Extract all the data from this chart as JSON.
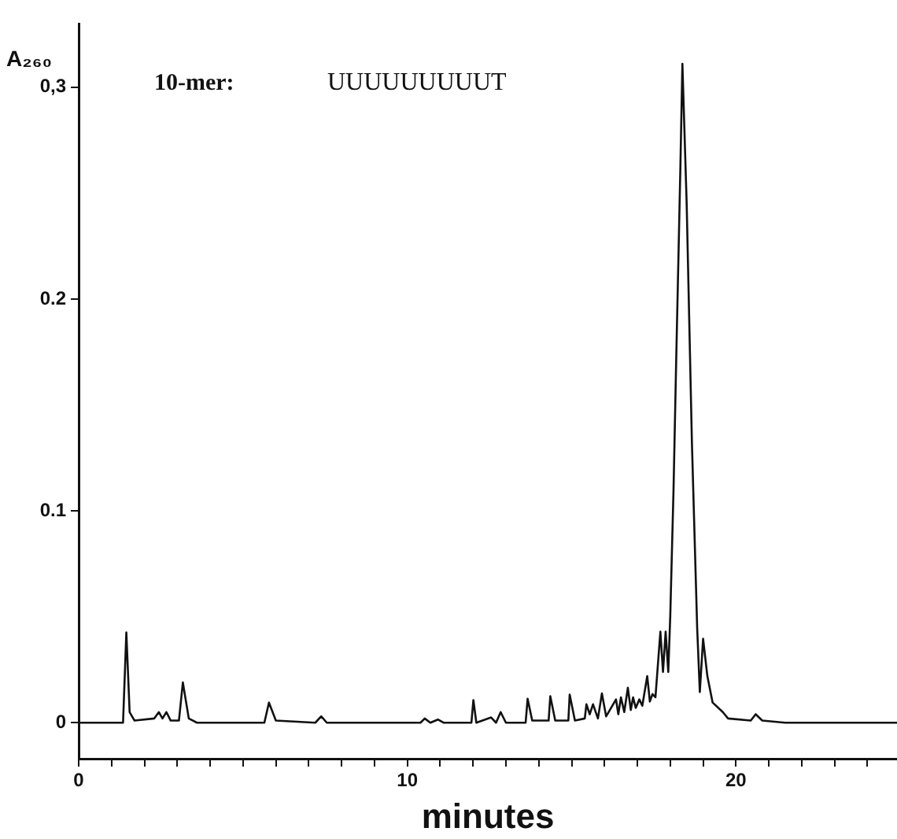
{
  "chart_data": {
    "type": "line",
    "xlabel": "minutes",
    "ylabel": "A₂₆₀",
    "annotations": [
      "10-mer:",
      "UUUUUUUUUT"
    ],
    "xlim": [
      0,
      24.9
    ],
    "ylim": [
      -0.017,
      0.33
    ],
    "xticks": [
      0,
      {
        "value": 1,
        "label": null
      },
      {
        "value": 2,
        "label": null
      },
      {
        "value": 3,
        "label": null
      },
      {
        "value": 4,
        "label": null
      },
      {
        "value": 5,
        "label": null
      },
      {
        "value": 6,
        "label": null
      },
      {
        "value": 7,
        "label": null
      },
      {
        "value": 8,
        "label": null
      },
      {
        "value": 9,
        "label": null
      },
      10,
      {
        "value": 11,
        "label": null
      },
      {
        "value": 12,
        "label": null
      },
      {
        "value": 13,
        "label": null
      },
      {
        "value": 14,
        "label": null
      },
      {
        "value": 15,
        "label": null
      },
      {
        "value": 16,
        "label": null
      },
      {
        "value": 17,
        "label": null
      },
      {
        "value": 18,
        "label": null
      },
      {
        "value": 19,
        "label": null
      },
      20,
      {
        "value": 21,
        "label": null
      },
      {
        "value": 22,
        "label": null
      },
      {
        "value": 23,
        "label": null
      },
      {
        "value": 24,
        "label": null
      }
    ],
    "yticks": [
      0,
      0.1,
      0.2,
      {
        "value": 0.3,
        "label": "0,3"
      }
    ],
    "grid": false,
    "legend": false,
    "marker": "none",
    "line_style": "solid",
    "series": [
      {
        "color": "#111111",
        "x": [
          0,
          1.35,
          1.45,
          1.55,
          1.7,
          2.3,
          2.44,
          2.55,
          2.67,
          2.8,
          3.05,
          3.17,
          3.35,
          3.6,
          5.65,
          5.79,
          6.0,
          7.2,
          7.38,
          7.55,
          10.4,
          10.53,
          10.7,
          10.93,
          11.1,
          11.95,
          12.01,
          12.1,
          12.55,
          12.7,
          12.84,
          13.0,
          13.6,
          13.66,
          13.8,
          14.3,
          14.35,
          14.5,
          14.9,
          14.94,
          15.1,
          15.4,
          15.45,
          15.55,
          15.65,
          15.8,
          15.92,
          16.05,
          16.35,
          16.42,
          16.5,
          16.6,
          16.71,
          16.8,
          16.87,
          16.95,
          17.06,
          17.15,
          17.3,
          17.38,
          17.46,
          17.55,
          17.7,
          17.78,
          17.86,
          17.94,
          18.0,
          18.1,
          18.18,
          18.31,
          18.37,
          18.5,
          18.66,
          18.82,
          18.9,
          19.0,
          19.13,
          19.29,
          19.6,
          19.76,
          20.45,
          20.6,
          20.8,
          21.5,
          24.9
        ],
        "values": [
          0,
          0,
          0.0426,
          0.005,
          0.001,
          0.002,
          0.005,
          0.002,
          0.005,
          0.001,
          0.001,
          0.019,
          0.002,
          0,
          0,
          0.0095,
          0.001,
          0,
          0.003,
          0,
          0,
          0.002,
          0,
          0.0015,
          0,
          0,
          0.0107,
          0,
          0.0025,
          0,
          0.005,
          0,
          0,
          0.0113,
          0.001,
          0.001,
          0.0125,
          0.001,
          0.001,
          0.0133,
          0.001,
          0.002,
          0.0087,
          0.004,
          0.0087,
          0.002,
          0.0138,
          0.003,
          0.011,
          0.004,
          0.012,
          0.005,
          0.0165,
          0.006,
          0.012,
          0.007,
          0.011,
          0.008,
          0.022,
          0.01,
          0.0135,
          0.012,
          0.043,
          0.024,
          0.043,
          0.024,
          0.05,
          0.11,
          0.17,
          0.263,
          0.311,
          0.245,
          0.132,
          0.0446,
          0.0145,
          0.0396,
          0.022,
          0.0095,
          0.005,
          0.002,
          0.001,
          0.004,
          0.001,
          0,
          0
        ]
      }
    ]
  }
}
